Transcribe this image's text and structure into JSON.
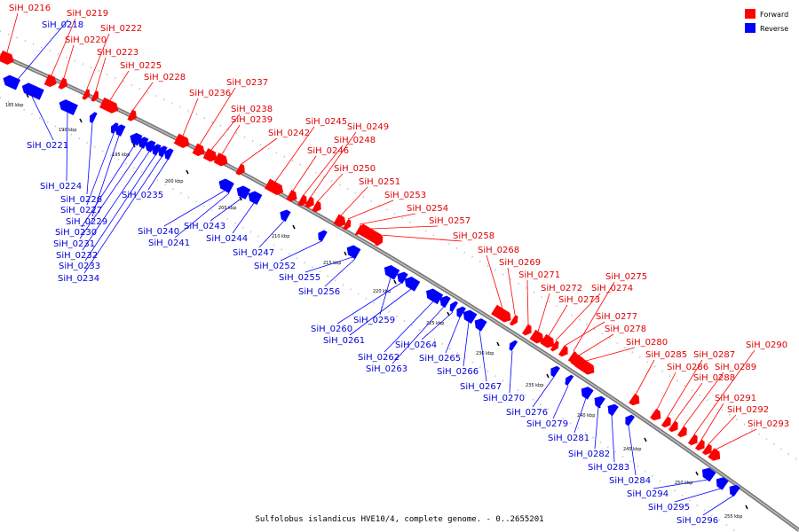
{
  "colors": {
    "forward": "#ff0000",
    "reverse": "#0000ff",
    "backbone": "#888888"
  },
  "legend": [
    {
      "label": "Forward",
      "color": "#ff0000"
    },
    {
      "label": "Reverse",
      "color": "#0000ff"
    }
  ],
  "caption": "Sulfolobus islandicus HVE10/4, complete genome. - 0..2655201",
  "ticks": [
    "185 kbp",
    "190 kbp",
    "195 kbp",
    "200 kbp",
    "205 kbp",
    "210 kbp",
    "215 kbp",
    "220 kbp",
    "225 kbp",
    "230 kbp",
    "235 kbp",
    "240 kbp",
    "245 kbp",
    "250 kbp",
    "255 kbp"
  ],
  "forward_genes": [
    "SiH_0216",
    "SiH_0219",
    "SiH_0220",
    "SiH_0222",
    "SiH_0223",
    "SiH_0225",
    "SiH_0228",
    "SiH_0236",
    "SiH_0237",
    "SiH_0238",
    "SiH_0239",
    "SiH_0242",
    "SiH_0245",
    "SiH_0246",
    "SiH_0248",
    "SiH_0249",
    "SiH_0250",
    "SiH_0251",
    "SiH_0253",
    "SiH_0254",
    "SiH_0257",
    "SiH_0258",
    "SiH_0268",
    "SiH_0269",
    "SiH_0271",
    "SiH_0272",
    "SiH_0273",
    "SiH_0274",
    "SiH_0275",
    "SiH_0277",
    "SiH_0278",
    "SiH_0280",
    "SiH_0285",
    "SiH_0286",
    "SiH_0287",
    "SiH_0288",
    "SiH_0289",
    "SiH_0290",
    "SiH_0291",
    "SiH_0292",
    "SiH_0293"
  ],
  "reverse_genes": [
    "SiH_0218",
    "SiH_0221",
    "SiH_0224",
    "SiH_0226",
    "SiH_0227",
    "SiH_0229",
    "SiH_0230",
    "SiH_0231",
    "SiH_0232",
    "SiH_0233",
    "SiH_0234",
    "SiH_0235",
    "SiH_0240",
    "SiH_0241",
    "SiH_0243",
    "SiH_0244",
    "SiH_0247",
    "SiH_0252",
    "SiH_0255",
    "SiH_0256",
    "SiH_0259",
    "SiH_0260",
    "SiH_0261",
    "SiH_0262",
    "SiH_0263",
    "SiH_0264",
    "SiH_0265",
    "SiH_0266",
    "SiH_0267",
    "SiH_0270",
    "SiH_0276",
    "SiH_0279",
    "SiH_0281",
    "SiH_0282",
    "SiH_0283",
    "SiH_0284",
    "SiH_0294",
    "SiH_0295",
    "SiH_0296"
  ]
}
